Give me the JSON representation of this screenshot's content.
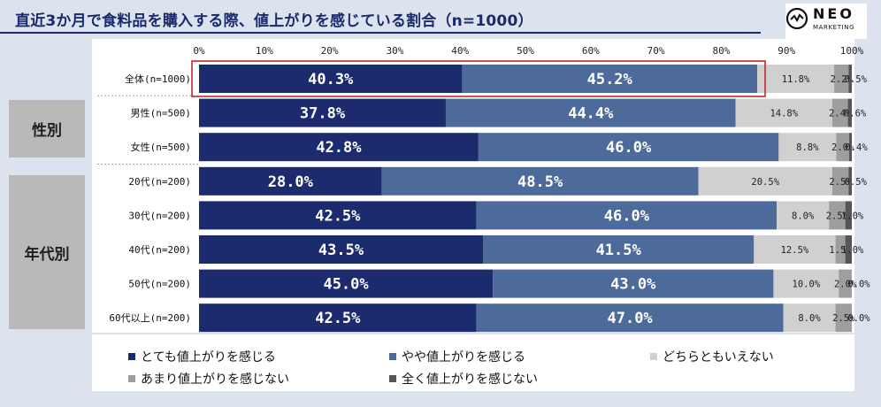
{
  "header": {
    "title": "直近3か月で食料品を購入する際、値上がりを感じている割合（n=1000）",
    "logo_text": "NEO",
    "logo_sub": "MARKETING"
  },
  "groups": {
    "gender": "性別",
    "age": "年代別"
  },
  "colors": {
    "series": [
      "#1c2a6e",
      "#4d6b9a",
      "#d0d0d0",
      "#9e9e9e",
      "#555555"
    ],
    "highlight": "#c0282d"
  },
  "chart_data": {
    "type": "bar",
    "orientation": "horizontal-stacked-100",
    "title": "直近3か月で食料品を購入する際、値上がりを感じている割合（n=1000）",
    "xlim": [
      0,
      100
    ],
    "ticks": [
      "0%",
      "10%",
      "20%",
      "30%",
      "40%",
      "50%",
      "60%",
      "70%",
      "80%",
      "90%",
      "100%"
    ],
    "categories": [
      "全体(n=1000)",
      "男性(n=500)",
      "女性(n=500)",
      "20代(n=200)",
      "30代(n=200)",
      "40代(n=200)",
      "50代(n=200)",
      "60代以上(n=200)"
    ],
    "series": [
      {
        "name": "とても値上がりを感じる",
        "values": [
          40.3,
          37.8,
          42.8,
          28.0,
          42.5,
          43.5,
          45.0,
          42.5
        ]
      },
      {
        "name": "やや値上がりを感じる",
        "values": [
          45.2,
          44.4,
          46.0,
          48.5,
          46.0,
          41.5,
          43.0,
          47.0
        ]
      },
      {
        "name": "どちらともいえない",
        "values": [
          11.8,
          14.8,
          8.8,
          20.5,
          8.0,
          12.5,
          10.0,
          8.0
        ]
      },
      {
        "name": "あまり値上がりを感じない",
        "values": [
          2.2,
          2.4,
          2.0,
          2.5,
          2.5,
          1.5,
          2.0,
          2.5
        ]
      },
      {
        "name": "全く値上がりを感じない",
        "values": [
          0.5,
          0.6,
          0.4,
          0.5,
          1.0,
          1.0,
          0.0,
          0.0
        ]
      }
    ],
    "highlight_category": "全体(n=1000)",
    "legend_position": "bottom"
  }
}
